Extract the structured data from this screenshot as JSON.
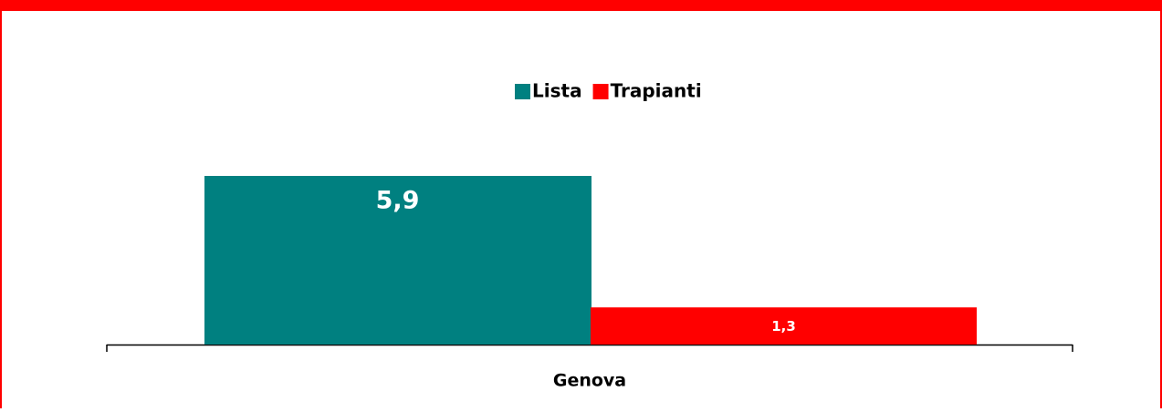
{
  "chart_data": {
    "type": "bar",
    "categories": [
      "Genova"
    ],
    "series": [
      {
        "name": "Lista",
        "color": "#008080",
        "values": [
          5.9
        ],
        "value_labels": [
          "5,9"
        ]
      },
      {
        "name": "Trapianti",
        "color": "#ff0000",
        "values": [
          1.3
        ],
        "value_labels": [
          "1,3"
        ]
      }
    ]
  }
}
